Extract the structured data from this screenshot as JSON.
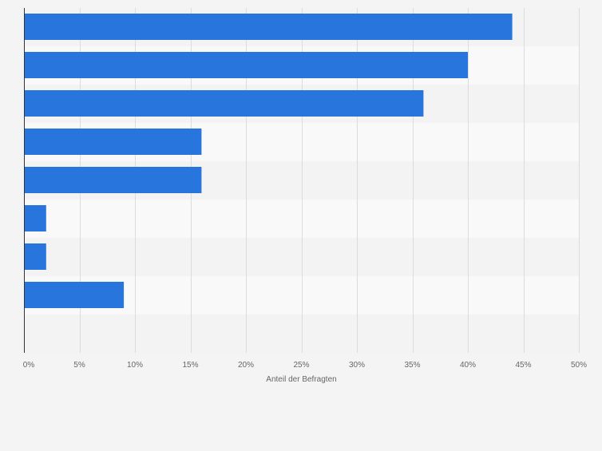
{
  "chart_data": {
    "type": "bar",
    "orientation": "horizontal",
    "title": "",
    "xlabel": "Anteil der Befragten",
    "ylabel": "",
    "categories": [
      "",
      "",
      "",
      "",
      "",
      "",
      "",
      ""
    ],
    "values": [
      44,
      40,
      36,
      16,
      16,
      2,
      2,
      9
    ],
    "unit": "%",
    "xlim": [
      0,
      50
    ],
    "xticks": [
      0,
      5,
      10,
      15,
      20,
      25,
      30,
      35,
      40,
      45,
      50
    ],
    "xtick_labels": [
      "0%",
      "5%",
      "10%",
      "15%",
      "20%",
      "25%",
      "30%",
      "35%",
      "40%",
      "45%",
      "50%"
    ],
    "grid": true,
    "legend": "none",
    "colors": {
      "bar": "#2876dd",
      "band_light": "#f9f9f9",
      "band_dark": "#f3f3f3",
      "grid": "#dcdcdc",
      "axis": "#333333",
      "text": "#666666",
      "background": "#f4f4f4"
    }
  }
}
